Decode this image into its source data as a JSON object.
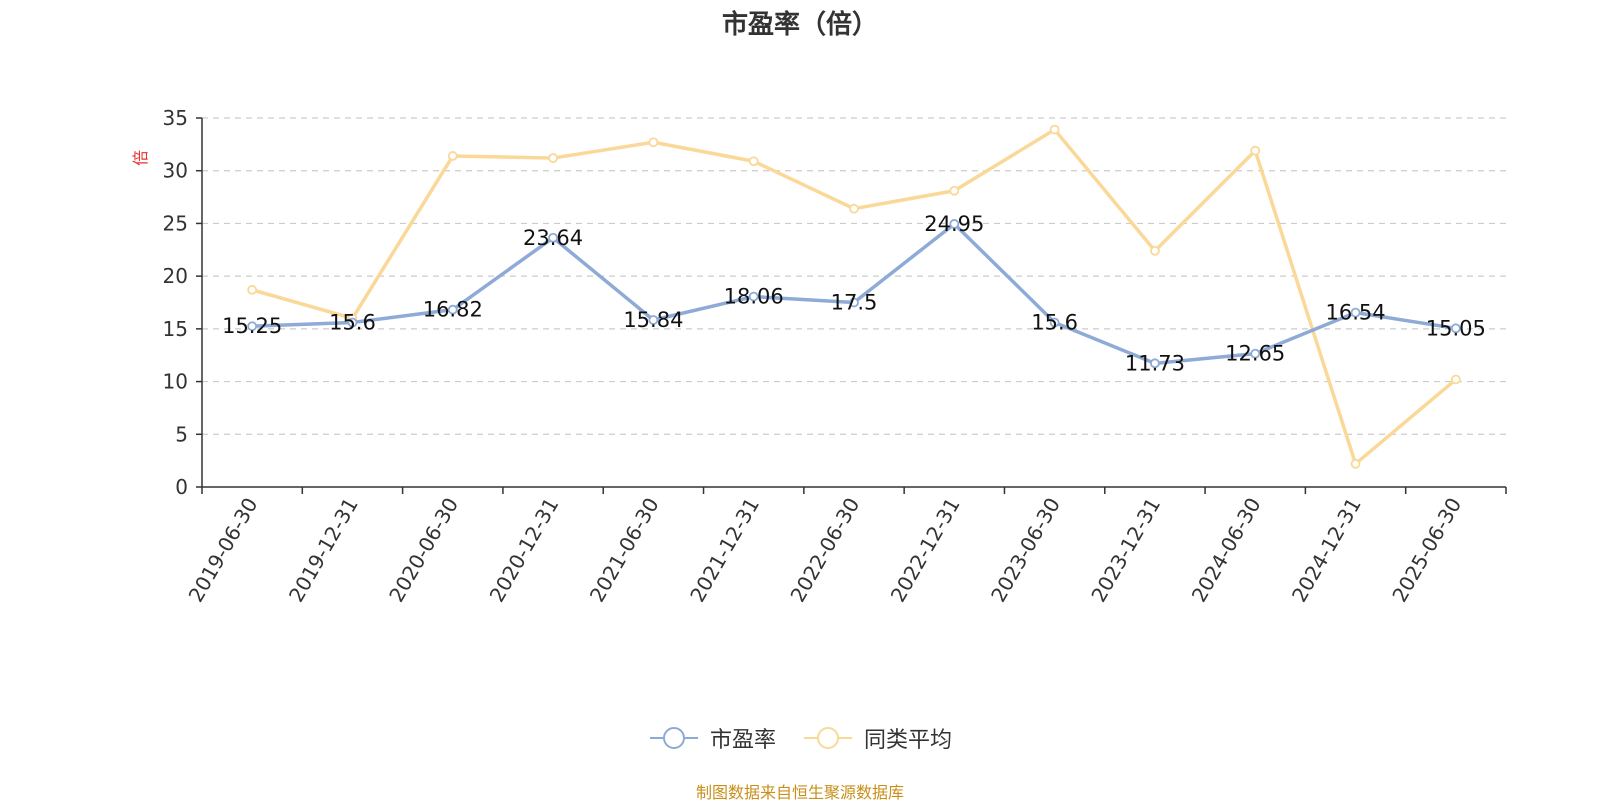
{
  "chart_data": {
    "type": "line",
    "title": "市盈率（倍）",
    "ylabel": "倍",
    "xlabel": "",
    "ylim": [
      0,
      35
    ],
    "yticks": [
      0,
      5,
      10,
      15,
      20,
      25,
      30,
      35
    ],
    "grid": true,
    "legend_position": "bottom-center",
    "categories": [
      "2019-06-30",
      "2019-12-31",
      "2020-06-30",
      "2020-12-31",
      "2021-06-30",
      "2021-12-31",
      "2022-06-30",
      "2022-12-31",
      "2023-06-30",
      "2023-12-31",
      "2024-06-30",
      "2024-12-31",
      "2025-06-30"
    ],
    "series": [
      {
        "name": "市盈率",
        "color": "#8eaad6",
        "data_labels": true,
        "values": [
          15.25,
          15.6,
          16.82,
          23.64,
          15.84,
          18.06,
          17.5,
          24.95,
          15.6,
          11.73,
          12.65,
          16.54,
          15.05
        ]
      },
      {
        "name": "同类平均",
        "color": "#fad898",
        "data_labels": false,
        "values": [
          18.7,
          16.0,
          31.4,
          31.2,
          32.7,
          30.9,
          26.4,
          28.1,
          33.9,
          22.4,
          31.9,
          2.2,
          10.2
        ]
      }
    ],
    "source_note": "制图数据来自恒生聚源数据库"
  },
  "colors": {
    "ylabel": "#e83030",
    "source_note": "#c8901a"
  }
}
